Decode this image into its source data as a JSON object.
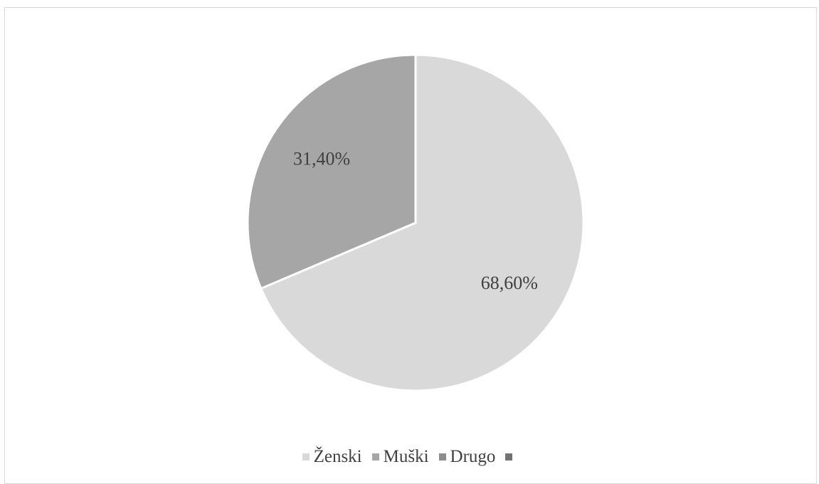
{
  "chart_data": {
    "type": "pie",
    "title": "",
    "slices": [
      {
        "label": "Ženski",
        "value": 68.6,
        "display": "68,60%",
        "color": "#d9d9d9"
      },
      {
        "label": "Muški",
        "value": 31.4,
        "display": "31,40%",
        "color": "#a6a6a6"
      },
      {
        "label": "Drugo",
        "value": 0,
        "display": "",
        "color": "#8c8c8c"
      },
      {
        "label": "",
        "value": 0,
        "display": "",
        "color": "#737373"
      }
    ],
    "legend_position": "bottom"
  }
}
